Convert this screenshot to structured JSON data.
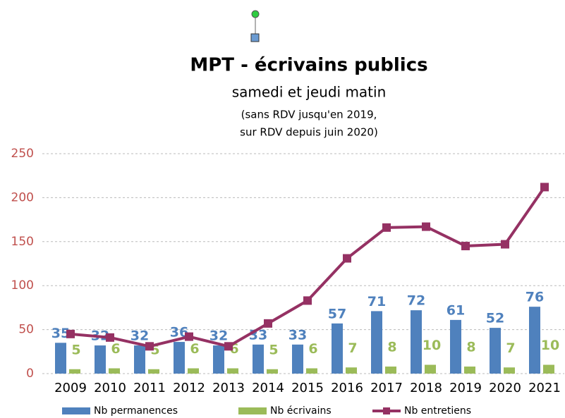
{
  "chart_data": {
    "type": "bar_line",
    "title": "MPT - écrivains publics",
    "subtitle": "samedi et jeudi matin",
    "annotations": [
      "(sans RDV jusqu'en 2019,",
      "sur RDV depuis juin 2020)"
    ],
    "categories": [
      "2009",
      "2010",
      "2011",
      "2012",
      "2013",
      "2014",
      "2015",
      "2016",
      "2017",
      "2018",
      "2019",
      "2020",
      "2021"
    ],
    "series": [
      {
        "name": "Nb permanences",
        "type": "bar",
        "color": "#4f81bd",
        "values": [
          35,
          32,
          32,
          36,
          32,
          33,
          33,
          57,
          71,
          72,
          61,
          52,
          76
        ]
      },
      {
        "name": "Nb écrivains",
        "type": "bar",
        "color": "#9bbb59",
        "values": [
          5,
          6,
          5,
          6,
          6,
          5,
          6,
          7,
          8,
          10,
          8,
          7,
          10
        ]
      },
      {
        "name": "Nb entretiens",
        "type": "line",
        "color": "#953163",
        "values": [
          45,
          41,
          31,
          42,
          31,
          57,
          83,
          131,
          166,
          167,
          145,
          147,
          212
        ]
      }
    ],
    "ylim": [
      0,
      250
    ],
    "yticks": [
      0,
      50,
      100,
      150,
      200,
      250
    ],
    "grid": true,
    "legend": "bottom"
  }
}
